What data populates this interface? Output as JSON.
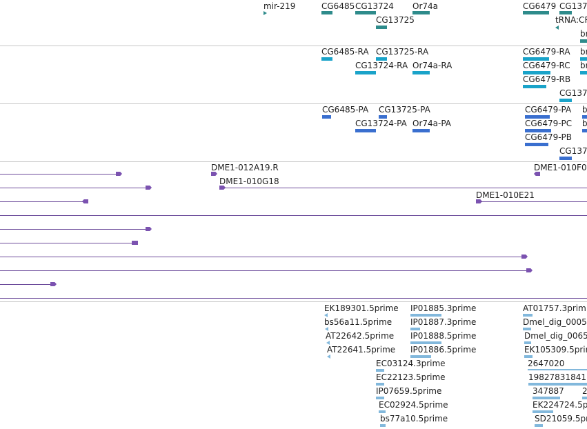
{
  "colors": {
    "gene": "#2e8b8b",
    "transcript": "#1aa3c9",
    "protein": "#3a6fcf",
    "clone": "#7b52b0",
    "est": "#82b8dc",
    "divider": "#c6c6c6"
  },
  "gene_track": {
    "labels": [
      "mir-219",
      "CG6485",
      "CG13724",
      "Or74a",
      "CG13725",
      "CG6479",
      "CG137",
      "tRNA:CR",
      "br"
    ]
  },
  "transcript_track": {
    "labels": [
      "CG6485-RA",
      "CG13725-RA",
      "CG13724-RA",
      "Or74a-RA",
      "CG6479-RA",
      "CG6479-RC",
      "CG6479-RB",
      "CG137",
      "br",
      "br"
    ]
  },
  "protein_track": {
    "labels": [
      "CG6485-PA",
      "CG13725-PA",
      "CG13724-PA",
      "Or74a-PA",
      "CG6479-PA",
      "CG6479-PC",
      "CG6479-PB",
      "CG137",
      "b",
      "b"
    ]
  },
  "clone_track": {
    "labels": [
      "DME1-012A19.R",
      "DME1-010G18",
      "DME1-010E21",
      "DME1-010F0"
    ]
  },
  "est_track": {
    "labels": [
      "EK189301.5prime",
      "bs56a11.5prime",
      "AT22642.5prime",
      "AT22641.5prime",
      "IP01885.3prime",
      "IP01887.3prime",
      "IP01888.5prime",
      "IP01886.5prime",
      "EC03124.3prime",
      "EC22123.5prime",
      "IP07659.5prime",
      "EC02924.5prime",
      "bs77a10.5prime",
      "AT01757.3prim",
      "Dmel_dig_0005",
      "Dmel_dig_0065",
      "EK105309.5prim",
      "2647020",
      "19827831841",
      "347887",
      "2",
      "EK224724.5p",
      "SD21059.5pr"
    ]
  }
}
